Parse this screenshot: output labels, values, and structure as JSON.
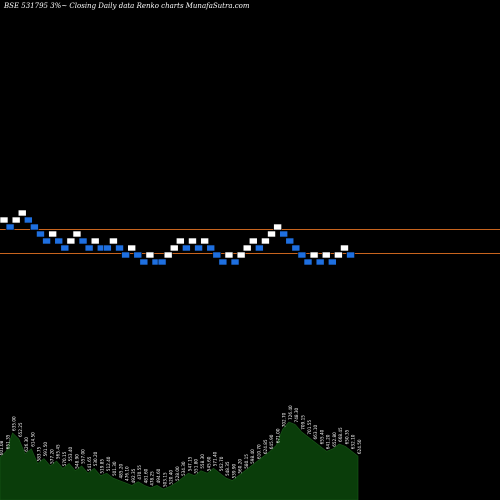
{
  "chart_data": {
    "type": "renko",
    "title": "BSE 531795 3%~  Closing Daily data  Renko  charts MunafaSutra.com",
    "colors": {
      "background": "#000000",
      "up_brick": "#ffffff",
      "down_brick": "#1e6fe0",
      "reference_line": "#c8641e",
      "volume_fill": "#0a3d0a",
      "volume_label": "#ffffff"
    },
    "reference_lines": [
      {
        "level": "upper"
      },
      {
        "level": "lower"
      }
    ],
    "bricks": [
      {
        "dir": "up",
        "level": 1
      },
      {
        "dir": "down",
        "level": 0
      },
      {
        "dir": "up",
        "level": 1
      },
      {
        "dir": "up",
        "level": 2
      },
      {
        "dir": "down",
        "level": 1
      },
      {
        "dir": "down",
        "level": 0
      },
      {
        "dir": "down",
        "level": -1
      },
      {
        "dir": "down",
        "level": -2
      },
      {
        "dir": "up",
        "level": -1
      },
      {
        "dir": "down",
        "level": -2
      },
      {
        "dir": "down",
        "level": -3
      },
      {
        "dir": "up",
        "level": -2
      },
      {
        "dir": "up",
        "level": -1
      },
      {
        "dir": "down",
        "level": -2
      },
      {
        "dir": "down",
        "level": -3
      },
      {
        "dir": "up",
        "level": -2
      },
      {
        "dir": "down",
        "level": -3
      },
      {
        "dir": "down",
        "level": -3
      },
      {
        "dir": "up",
        "level": -2
      },
      {
        "dir": "down",
        "level": -3
      },
      {
        "dir": "down",
        "level": -4
      },
      {
        "dir": "up",
        "level": -3
      },
      {
        "dir": "down",
        "level": -4
      },
      {
        "dir": "down",
        "level": -5
      },
      {
        "dir": "up",
        "level": -4
      },
      {
        "dir": "down",
        "level": -5
      },
      {
        "dir": "down",
        "level": -5
      },
      {
        "dir": "up",
        "level": -4
      },
      {
        "dir": "up",
        "level": -3
      },
      {
        "dir": "up",
        "level": -2
      },
      {
        "dir": "down",
        "level": -3
      },
      {
        "dir": "up",
        "level": -2
      },
      {
        "dir": "down",
        "level": -3
      },
      {
        "dir": "up",
        "level": -2
      },
      {
        "dir": "down",
        "level": -3
      },
      {
        "dir": "down",
        "level": -4
      },
      {
        "dir": "down",
        "level": -5
      },
      {
        "dir": "up",
        "level": -4
      },
      {
        "dir": "down",
        "level": -5
      },
      {
        "dir": "up",
        "level": -4
      },
      {
        "dir": "up",
        "level": -3
      },
      {
        "dir": "up",
        "level": -2
      },
      {
        "dir": "down",
        "level": -3
      },
      {
        "dir": "up",
        "level": -2
      },
      {
        "dir": "up",
        "level": -1
      },
      {
        "dir": "up",
        "level": 0
      },
      {
        "dir": "down",
        "level": -1
      },
      {
        "dir": "down",
        "level": -2
      },
      {
        "dir": "down",
        "level": -3
      },
      {
        "dir": "down",
        "level": -4
      },
      {
        "dir": "down",
        "level": -5
      },
      {
        "dir": "up",
        "level": -4
      },
      {
        "dir": "down",
        "level": -5
      },
      {
        "dir": "up",
        "level": -4
      },
      {
        "dir": "down",
        "level": -5
      },
      {
        "dir": "up",
        "level": -4
      },
      {
        "dir": "up",
        "level": -3
      },
      {
        "dir": "down",
        "level": -4
      }
    ],
    "volume": {
      "values": [
        35,
        40,
        55,
        50,
        38,
        42,
        30,
        34,
        28,
        32,
        26,
        30,
        24,
        28,
        22,
        26,
        20,
        22,
        18,
        16,
        14,
        12,
        15,
        12,
        10,
        12,
        9,
        11,
        14,
        18,
        22,
        20,
        24,
        22,
        26,
        22,
        18,
        16,
        20,
        24,
        28,
        32,
        36,
        40,
        45,
        58,
        64,
        62,
        56,
        52,
        48,
        44,
        40,
        42,
        46,
        44,
        40,
        36
      ],
      "labels": [
        "601.08",
        "651.35",
        "635.00",
        "652.25",
        "626.30",
        "614.50",
        "583.75",
        "591.50",
        "577.20",
        "565.45",
        "570.15",
        "553.40",
        "548.90",
        "557.00",
        "541.65",
        "530.20",
        "519.85",
        "512.40",
        "501.30",
        "485.20",
        "476.10",
        "492.35",
        "470.55",
        "481.60",
        "478.25",
        "494.60",
        "503.15",
        "520.40",
        "528.00",
        "534.30",
        "547.15",
        "551.80",
        "558.30",
        "545.60",
        "571.40",
        "562.70",
        "548.35",
        "539.90",
        "560.20",
        "580.15",
        "598.40",
        "610.70",
        "624.85",
        "645.90",
        "671.00",
        "702.70",
        "726.40",
        "748.30",
        "709.15",
        "701.55",
        "663.10",
        "655.40",
        "641.20",
        "652.80",
        "668.45",
        "650.35",
        "632.10",
        "624.50"
      ]
    }
  }
}
